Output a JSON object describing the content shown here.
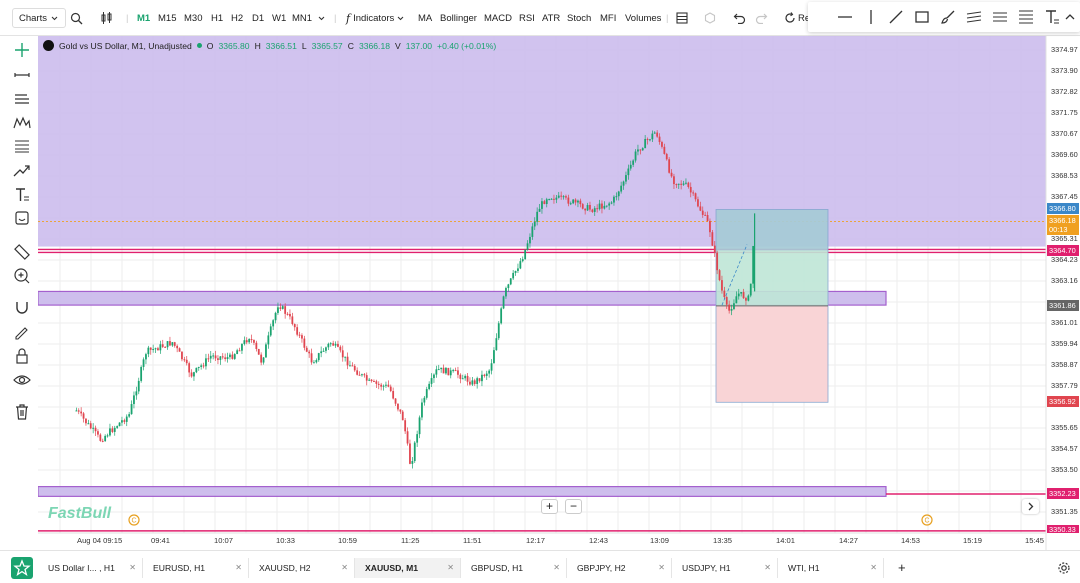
{
  "toolbar": {
    "charts_label": "Charts",
    "timeframes": [
      "M1",
      "M15",
      "M30",
      "H1",
      "H2",
      "D1",
      "W1",
      "MN1"
    ],
    "active_timeframe": "M1",
    "indicators_label": "Indicators",
    "indicators": [
      "MA",
      "Bollinger",
      "MACD",
      "RSI",
      "ATR",
      "Stoch",
      "MFI",
      "Volumes"
    ],
    "reset_label": "Re"
  },
  "legend": {
    "title": "Gold vs US Dollar, M1, Unadjusted",
    "o_label": "O",
    "o": "3365.80",
    "h_label": "H",
    "h": "3366.51",
    "l_label": "L",
    "l": "3365.57",
    "c_label": "C",
    "c": "3366.18",
    "v_label": "V",
    "v": "137.00",
    "change": "+0.40 (+0.01%)"
  },
  "price_axis": [
    "3374.97",
    "3373.90",
    "3372.82",
    "3371.75",
    "3370.67",
    "3369.60",
    "3368.53",
    "3367.45",
    "3365.31",
    "3364.23",
    "3363.16",
    "3361.01",
    "3359.94",
    "3358.87",
    "3357.79",
    "3355.65",
    "3354.57",
    "3353.50",
    "3351.35"
  ],
  "price_badges": {
    "p1": "3366.80",
    "p2": "3366.18",
    "countdown": "00:13",
    "p3": "3364.70",
    "p4": "3361.86",
    "p5": "3356.92",
    "p6": "3352.23",
    "p7": "3350.33"
  },
  "time_axis": [
    "Aug 04 09:15",
    "09:41",
    "10:07",
    "10:33",
    "10:59",
    "11:25",
    "11:51",
    "12:17",
    "12:43",
    "13:09",
    "13:35",
    "14:01",
    "14:27",
    "14:53",
    "15:19",
    "15:45"
  ],
  "watermark": "FastBull",
  "zoom": {
    "plus": "+",
    "minus": "−"
  },
  "tabs": [
    {
      "label": "US Dollar I... , H1",
      "active": false
    },
    {
      "label": "EURUSD, H1",
      "active": false
    },
    {
      "label": "XAUUSD, H2",
      "active": false
    },
    {
      "label": "XAUUSD, M1",
      "active": true
    },
    {
      "label": "GBPUSD, H1",
      "active": false
    },
    {
      "label": "GBPJPY, H2",
      "active": false
    },
    {
      "label": "USDJPY, H1",
      "active": false
    },
    {
      "label": "WTI, H1",
      "active": false
    }
  ],
  "tab_add": "+",
  "colors": {
    "bull": "#1aa36f",
    "bear": "#e0454f",
    "zone": "#c9b8ec",
    "zone_border": "#9b4fc9",
    "line_magenta": "#e0206e",
    "profit": "#bfe6d6",
    "loss": "#f9d2d4",
    "badge_gray": "#666666",
    "badge_orange": "#f0a020"
  },
  "chart_data": {
    "type": "candlestick",
    "symbol": "XAUUSD",
    "timeframe": "M1",
    "x_range": [
      "09:15",
      "15:45"
    ],
    "y_range": [
      3350.33,
      3375.5
    ],
    "path_points": [
      [
        "09:06",
        3356.5
      ],
      [
        "09:16",
        3355.0
      ],
      [
        "09:28",
        3356.3
      ],
      [
        "09:35",
        3359.5
      ],
      [
        "09:46",
        3360.0
      ],
      [
        "09:54",
        3358.3
      ],
      [
        "10:02",
        3359.3
      ],
      [
        "10:10",
        3359.2
      ],
      [
        "10:18",
        3360.3
      ],
      [
        "10:23",
        3359.0
      ],
      [
        "10:30",
        3362.0
      ],
      [
        "10:36",
        3361.0
      ],
      [
        "10:44",
        3359.0
      ],
      [
        "10:52",
        3360.0
      ],
      [
        "11:00",
        3358.8
      ],
      [
        "11:08",
        3357.9
      ],
      [
        "11:16",
        3357.7
      ],
      [
        "11:22",
        3356.0
      ],
      [
        "11:25",
        3353.6
      ],
      [
        "11:30",
        3357.0
      ],
      [
        "11:36",
        3358.6
      ],
      [
        "11:44",
        3358.4
      ],
      [
        "11:51",
        3357.9
      ],
      [
        "11:58",
        3358.6
      ],
      [
        "12:04",
        3362.5
      ],
      [
        "12:12",
        3364.5
      ],
      [
        "12:18",
        3366.8
      ],
      [
        "12:22",
        3367.5
      ],
      [
        "12:32",
        3367.2
      ],
      [
        "12:40",
        3366.8
      ],
      [
        "12:49",
        3367.2
      ],
      [
        "12:55",
        3368.6
      ],
      [
        "12:59",
        3369.8
      ],
      [
        "13:07",
        3370.8
      ],
      [
        "13:14",
        3368.3
      ],
      [
        "13:20",
        3368.0
      ],
      [
        "13:29",
        3366.0
      ],
      [
        "13:34",
        3362.8
      ],
      [
        "13:37",
        3361.5
      ],
      [
        "13:41",
        3362.5
      ],
      [
        "13:46",
        3362.2
      ],
      [
        "13:48",
        3366.2
      ]
    ],
    "zones": [
      {
        "from": 3364.9,
        "to": 3375.5
      },
      {
        "from": 3361.9,
        "to": 3362.6
      },
      {
        "from": 3352.1,
        "to": 3352.6
      }
    ],
    "lines": [
      3364.7,
      3350.33
    ],
    "position": {
      "entry": 3361.86,
      "target": 3366.8,
      "stop": 3356.92
    }
  }
}
